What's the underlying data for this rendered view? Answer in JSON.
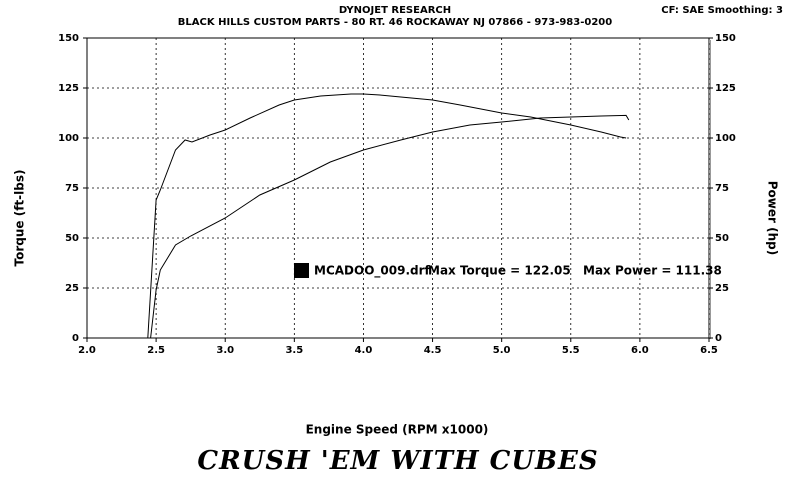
{
  "chart_data": {
    "type": "line",
    "title": "DYNOJET RESEARCH",
    "subtitle": "BLACK HILLS CUSTOM PARTS - 80 RT. 46   ROCKAWAY  NJ  07866 - 973-983-0200",
    "settings_text": "CF: SAE  Smoothing: 3",
    "x_label": "Engine Speed (RPM x1000)",
    "y_label": "Torque (ft-lbs)",
    "y2_label": "Power (hp)",
    "legend": "MCADOO_009.drf",
    "annotations": [
      "Max Torque = 122.05",
      "Max Power = 111.38"
    ],
    "footer": "CRUSH 'EM WITH CUBES",
    "xlim": [
      2.0,
      6.5
    ],
    "xticks": [
      {
        "value": 2.0,
        "label": "2.0"
      },
      2.5,
      {
        "value": 3.0,
        "label": "3.0"
      },
      3.5,
      {
        "value": 4.0,
        "label": "4.0"
      },
      4.5,
      {
        "value": 5.0,
        "label": "5.0"
      },
      5.5,
      {
        "value": 6.0,
        "label": "6.0"
      },
      6.5
    ],
    "ylim": [
      0,
      150
    ],
    "yticks": [
      0,
      25,
      50,
      75,
      100,
      125,
      150
    ],
    "y2lim": [
      0,
      150
    ],
    "y2ticks": [
      0,
      25,
      50,
      75,
      100,
      125,
      150
    ],
    "grid": true,
    "series": [
      {
        "color": "#000000",
        "x": [
          2.44,
          2.5,
          2.53,
          2.64,
          2.71,
          2.76,
          2.89,
          3.0,
          3.18,
          3.39,
          3.5,
          3.69,
          3.91,
          4.0,
          4.12,
          4.27,
          4.5,
          4.7,
          5.0,
          5.21,
          5.5,
          5.72,
          5.86,
          5.9
        ],
        "values": [
          0,
          69,
          74,
          94,
          99,
          98,
          101.5,
          104,
          110,
          116.5,
          119,
          121,
          122,
          122,
          121.5,
          120.5,
          119,
          116.5,
          112.5,
          110.5,
          106.5,
          103,
          100.5,
          100
        ]
      },
      {
        "color": "#000000",
        "axis": "y2",
        "x": [
          2.46,
          2.5,
          2.53,
          2.64,
          2.75,
          3.0,
          3.25,
          3.5,
          3.76,
          4.0,
          4.27,
          4.5,
          4.77,
          5.0,
          5.28,
          5.5,
          5.72,
          5.9,
          5.92
        ],
        "values": [
          0,
          24,
          34,
          46.5,
          51,
          60,
          71.5,
          79,
          88,
          94,
          99,
          103,
          106.5,
          108,
          110,
          110.5,
          111,
          111.3,
          109
        ]
      }
    ]
  }
}
